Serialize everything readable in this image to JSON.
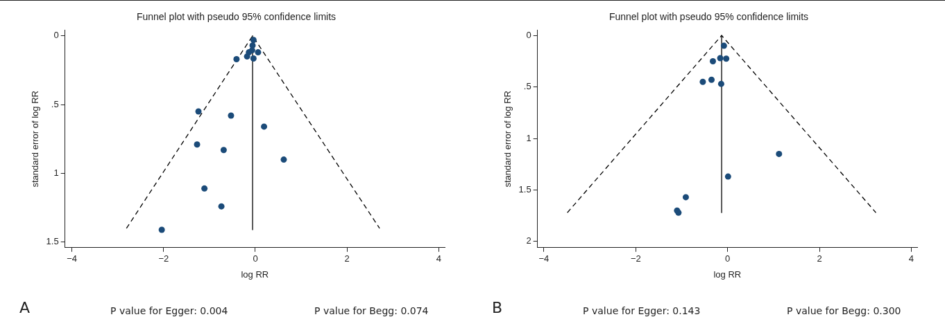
{
  "chart_data": [
    {
      "type": "scatter",
      "title": "Funnel plot with pseudo 95% confidence limits",
      "xlabel": "log RR",
      "ylabel": "standard error of log RR",
      "marker": "circle",
      "grid": false,
      "legend": false,
      "x": [
        -0.04,
        -0.06,
        -0.14,
        -0.07,
        0.06,
        -0.18,
        -0.04,
        -0.41,
        -1.24,
        -0.53,
        0.19,
        -1.27,
        -0.69,
        0.62,
        -1.11,
        -0.74,
        -2.04
      ],
      "series": [
        {
          "color": "#1b4b79",
          "values": [
            0.03,
            0.07,
            0.12,
            0.105,
            0.12,
            0.15,
            0.165,
            0.17,
            0.55,
            0.58,
            0.66,
            0.79,
            0.83,
            0.9,
            1.11,
            1.24,
            1.41
          ]
        },
        {
          "type": "line",
          "marker": "none",
          "line_style": "dashed",
          "color": "#000000",
          "x": [
            -2.81,
            -0.06,
            2.71
          ],
          "values": [
            1.4,
            0,
            1.4
          ]
        },
        {
          "type": "line",
          "marker": "none",
          "line_style": "solid",
          "color": "#000000",
          "x": [
            -0.06,
            -0.06
          ],
          "values": [
            0,
            1.41
          ]
        }
      ],
      "xlim": [
        -4.15,
        4.13
      ],
      "xticks": [
        -4,
        -2,
        0,
        2,
        4
      ],
      "ylim": [
        1.54,
        -0.04
      ],
      "yticks": [
        0,
        {
          "value": 0.5,
          "label": ".5"
        },
        1,
        1.5
      ],
      "annotations": [
        "A",
        "P value for Egger: 0.004",
        "P value for Begg: 0.074"
      ]
    },
    {
      "type": "scatter",
      "title": "Funnel plot with pseudo 95% confidence limits",
      "xlabel": "log RR",
      "ylabel": "standard error of log RR",
      "marker": "circle",
      "grid": false,
      "legend": false,
      "x": [
        -0.08,
        -0.16,
        -0.03,
        -0.32,
        -0.35,
        -0.54,
        -0.14,
        1.12,
        0.01,
        -0.91,
        -1.1,
        -1.07
      ],
      "series": [
        {
          "color": "#1b4b79",
          "values": [
            0.1,
            0.22,
            0.225,
            0.25,
            0.43,
            0.45,
            0.47,
            1.15,
            1.37,
            1.57,
            1.7,
            1.72
          ]
        },
        {
          "type": "line",
          "marker": "none",
          "line_style": "dashed",
          "color": "#000000",
          "x": [
            -3.49,
            -0.13,
            3.23
          ],
          "values": [
            1.72,
            0,
            1.72
          ]
        },
        {
          "type": "line",
          "marker": "none",
          "line_style": "solid",
          "color": "#000000",
          "x": [
            -0.13,
            -0.13
          ],
          "values": [
            0,
            1.72
          ]
        }
      ],
      "xlim": [
        -4.14,
        4.13
      ],
      "xticks": [
        -4,
        -2,
        0,
        2,
        4
      ],
      "ylim": [
        2.06,
        -0.05
      ],
      "yticks": [
        0,
        {
          "value": 0.5,
          "label": ".5"
        },
        1,
        1.5,
        2
      ],
      "annotations": [
        "B",
        "P value for Egger: 0.143",
        "P value for Begg: 0.300"
      ]
    }
  ]
}
